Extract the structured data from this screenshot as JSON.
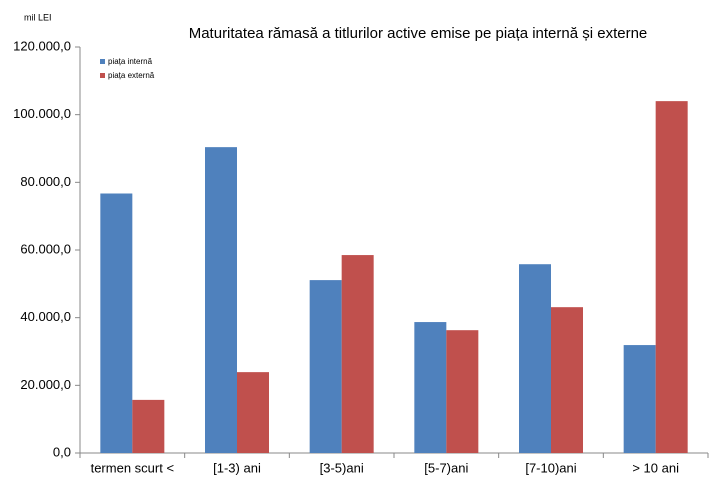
{
  "chart_data": {
    "type": "bar",
    "title": "Maturitatea rămasă a titlurilor active emise pe piața internă și externe",
    "y_axis_label": "mil LEI",
    "categories": [
      "termen scurt <",
      "[1-3) ani",
      "[3-5)ani",
      "[5-7)ani",
      "[7-10)ani",
      "> 10 ani"
    ],
    "series": [
      {
        "name": "piața internă",
        "color": "#4f81bd",
        "values": [
          76700,
          90400,
          51100,
          38700,
          55800,
          31900
        ]
      },
      {
        "name": "piața externă",
        "color": "#c0504d",
        "values": [
          15700,
          23900,
          58500,
          36300,
          43100,
          104000
        ]
      }
    ],
    "ylim": [
      0,
      120000
    ],
    "yticks": [
      {
        "value": 0,
        "label": "0,0"
      },
      {
        "value": 20000,
        "label": "20.000,0"
      },
      {
        "value": 40000,
        "label": "40.000,0"
      },
      {
        "value": 60000,
        "label": "60.000,0"
      },
      {
        "value": 80000,
        "label": "80.000,0"
      },
      {
        "value": 100000,
        "label": "100.000,0"
      },
      {
        "value": 120000,
        "label": "120.000,0"
      }
    ],
    "grid": false,
    "legend": "top-left"
  }
}
